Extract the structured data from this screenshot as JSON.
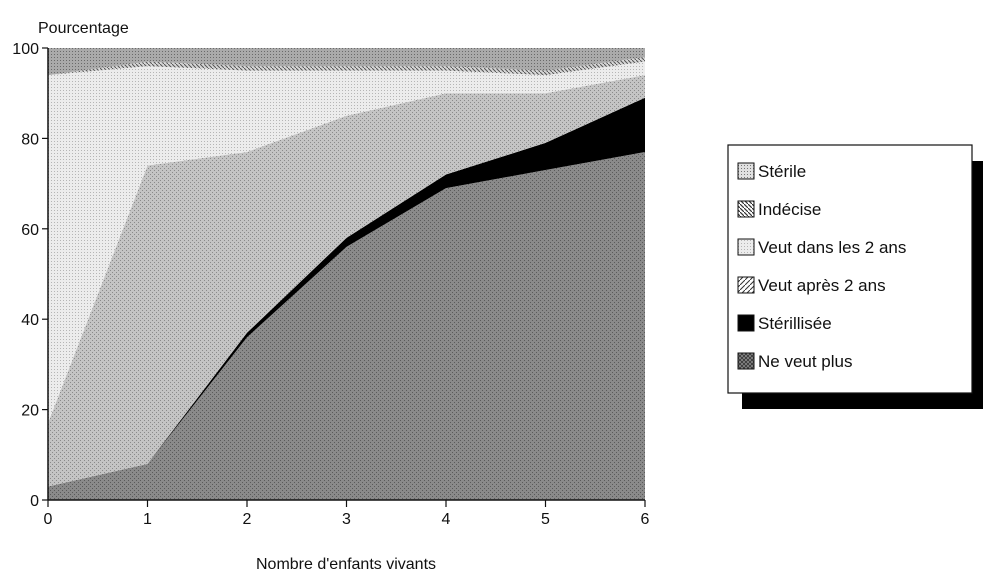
{
  "chart_data": {
    "type": "area",
    "stacked": true,
    "ylabel": "Pourcentage",
    "xlabel": "Nombre d'enfants vivants",
    "xlim": [
      0,
      6
    ],
    "ylim": [
      0,
      100
    ],
    "x_ticks": [
      "0",
      "1",
      "2",
      "3",
      "4",
      "5",
      "6"
    ],
    "y_ticks": [
      "0",
      "20",
      "40",
      "60",
      "80",
      "100"
    ],
    "x": [
      0,
      1,
      2,
      3,
      4,
      5,
      6
    ],
    "grid": false,
    "legend_position": "right",
    "series": [
      {
        "name": "Ne veut plus",
        "values": [
          3,
          8,
          36,
          56,
          69,
          73,
          77
        ],
        "color": "#8c8c8c"
      },
      {
        "name": "Stérillisée",
        "values": [
          0,
          0,
          1,
          2,
          3,
          6,
          12
        ],
        "color": "#000000"
      },
      {
        "name": "Veut après 2 ans",
        "values": [
          14,
          66,
          40,
          27,
          18,
          11,
          5
        ],
        "color": "#bdbdbd"
      },
      {
        "name": "Veut dans les 2 ans",
        "values": [
          77,
          22,
          18,
          10,
          5,
          4,
          3
        ],
        "color": "#ebebeb"
      },
      {
        "name": "Indécise",
        "values": [
          0,
          1,
          1,
          1,
          1,
          1,
          1
        ],
        "color": "#d4d4d4"
      },
      {
        "name": "Stérile",
        "values": [
          6,
          3,
          4,
          4,
          4,
          5,
          2
        ],
        "color": "#9e9e9e"
      }
    ],
    "legend_order": [
      "Stérile",
      "Indécise",
      "Veut dans les 2 ans",
      "Veut après 2 ans",
      "Stérillisée",
      "Ne veut plus"
    ]
  }
}
